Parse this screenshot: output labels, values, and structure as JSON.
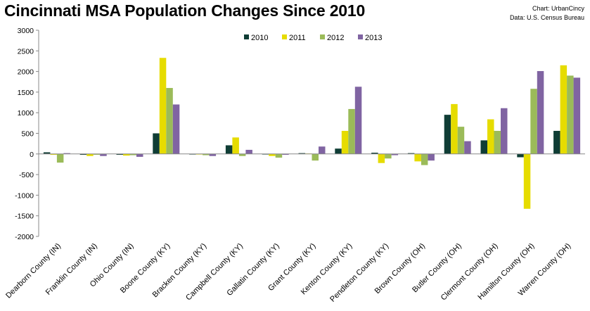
{
  "header": {
    "title": "Cincinnati MSA Population Changes Since 2010",
    "credit_line1": "Chart: UrbanCincy",
    "credit_line2": "Data: U.S. Census Bureau"
  },
  "chart_data": {
    "type": "bar",
    "title": "Cincinnati MSA Population Changes Since 2010",
    "xlabel": "",
    "ylabel": "",
    "ylim": [
      -2000,
      3000
    ],
    "yticks": [
      3000,
      2500,
      2000,
      1500,
      1000,
      500,
      0,
      -500,
      -1000,
      -1500,
      -2000
    ],
    "grid": false,
    "legend_position": "top-center",
    "categories": [
      "Dearborn County (IN)",
      "Franklin County (IN)",
      "Ohio County (IN)",
      "Boone County (KY)",
      "Bracken County (KY)",
      "Campbell County (KY)",
      "Gallatin County (KY)",
      "Grant County (KY)",
      "Kenton County (KY)",
      "Pendleton County (KY)",
      "Brown County (OH)",
      "Butler County (OH)",
      "Clermont County (OH)",
      "Hamilton County (OH)",
      "Warren County (OH)"
    ],
    "series": [
      {
        "name": "2010",
        "color": "#0f3d35",
        "values": [
          40,
          -20,
          -20,
          500,
          0,
          210,
          0,
          20,
          130,
          30,
          20,
          950,
          330,
          -80,
          560
        ]
      },
      {
        "name": "2011",
        "color": "#e6dc00",
        "values": [
          -20,
          -50,
          -40,
          2330,
          -10,
          400,
          -50,
          10,
          560,
          -220,
          -180,
          1210,
          840,
          -1330,
          2150
        ]
      },
      {
        "name": "2012",
        "color": "#9bbb59",
        "values": [
          -210,
          -20,
          -30,
          1600,
          -30,
          -50,
          -90,
          -160,
          1090,
          -110,
          -270,
          660,
          560,
          1580,
          1900
        ]
      },
      {
        "name": "2013",
        "color": "#8064a2",
        "values": [
          20,
          -50,
          -70,
          1200,
          -50,
          100,
          -20,
          180,
          1630,
          -30,
          -160,
          310,
          1110,
          2010,
          1850
        ]
      }
    ]
  }
}
